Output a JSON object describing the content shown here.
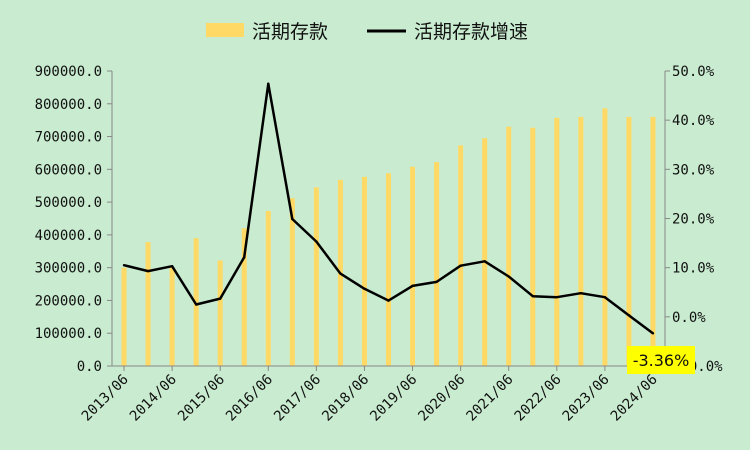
{
  "chart_data": {
    "type": "bar+line",
    "categories": [
      "2013/06",
      "2013/12",
      "2014/06",
      "2014/12",
      "2015/06",
      "2015/12",
      "2016/06",
      "2016/12",
      "2017/06",
      "2017/12",
      "2018/06",
      "2018/12",
      "2019/06",
      "2019/12",
      "2020/06",
      "2020/12",
      "2021/06",
      "2021/12",
      "2022/06",
      "2022/12",
      "2023/06",
      "2023/12",
      "2024/06"
    ],
    "tick_labels": [
      "2013/06",
      "2014/06",
      "2015/06",
      "2016/06",
      "2017/06",
      "2018/06",
      "2019/06",
      "2020/06",
      "2021/06",
      "2022/06",
      "2023/06",
      "2024/06"
    ],
    "series": [
      {
        "name": "活期存款",
        "type": "bar",
        "axis": "left",
        "color": "#ffd966",
        "values": [
          300000,
          378000,
          300000,
          390000,
          322000,
          420000,
          473000,
          512000,
          545000,
          568000,
          577000,
          588000,
          608000,
          622000,
          673000,
          695000,
          730000,
          727000,
          757000,
          760000,
          786000,
          760000,
          760000
        ]
      },
      {
        "name": "活期存款增速",
        "type": "line",
        "axis": "right",
        "color": "#000000",
        "values": [
          10.5,
          9.3,
          10.3,
          2.5,
          3.7,
          12.1,
          47.4,
          19.9,
          15.3,
          8.8,
          5.7,
          3.3,
          6.3,
          7.1,
          10.4,
          11.3,
          8.2,
          4.2,
          4.0,
          4.8,
          4.0,
          0.3,
          -3.36
        ]
      }
    ],
    "y_left": {
      "ticks": [
        "0.0",
        "100000.0",
        "200000.0",
        "300000.0",
        "400000.0",
        "500000.0",
        "600000.0",
        "700000.0",
        "800000.0",
        "900000.0"
      ],
      "range": [
        0,
        900000
      ]
    },
    "y_right": {
      "ticks": [
        "-10.0%",
        "0.0%",
        "10.0%",
        "20.0%",
        "30.0%",
        "40.0%",
        "50.0%"
      ],
      "range": [
        -10,
        50
      ]
    },
    "annotation": {
      "text": "-3.36%",
      "background": "#ffff00"
    },
    "legend_position": "top",
    "grid": false,
    "background": "#c9ecd0"
  }
}
